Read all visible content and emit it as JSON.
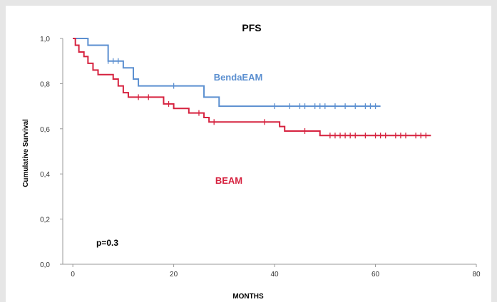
{
  "chart_data": {
    "type": "line",
    "title": "PFS",
    "xlabel": "MONTHS",
    "ylabel": "Cumulative Survival",
    "xlim": [
      -2,
      80
    ],
    "ylim": [
      0,
      1
    ],
    "x_ticks": [
      0,
      20,
      40,
      60,
      80
    ],
    "x_tick_labels": [
      "0",
      "20",
      "40",
      "60",
      "80"
    ],
    "y_ticks": [
      0,
      0.2,
      0.4,
      0.6,
      0.8,
      1.0
    ],
    "y_tick_labels": [
      "0,0",
      "0,2",
      "0,4",
      "0,6",
      "0,8",
      "1,0"
    ],
    "grid": false,
    "annotation": "p=0.3",
    "series": [
      {
        "name": "BendaEAM",
        "color": "#5b8fd0",
        "steps": [
          [
            0,
            1.0
          ],
          [
            3,
            0.97
          ],
          [
            7,
            0.9
          ],
          [
            10,
            0.87
          ],
          [
            12,
            0.82
          ],
          [
            13,
            0.79
          ],
          [
            26,
            0.74
          ],
          [
            29,
            0.7
          ],
          [
            61,
            0.7
          ]
        ],
        "censored": [
          7,
          8,
          9,
          20,
          40,
          43,
          45,
          46,
          48,
          49,
          50,
          52,
          54,
          56,
          58,
          59,
          60
        ]
      },
      {
        "name": "BEAM",
        "color": "#d6223f",
        "steps": [
          [
            0,
            1.0
          ],
          [
            0.5,
            0.97
          ],
          [
            1.2,
            0.94
          ],
          [
            2.2,
            0.92
          ],
          [
            3,
            0.89
          ],
          [
            4,
            0.86
          ],
          [
            5,
            0.84
          ],
          [
            8,
            0.82
          ],
          [
            9,
            0.79
          ],
          [
            10,
            0.76
          ],
          [
            11,
            0.74
          ],
          [
            18,
            0.71
          ],
          [
            20,
            0.69
          ],
          [
            23,
            0.67
          ],
          [
            26,
            0.65
          ],
          [
            27,
            0.63
          ],
          [
            41,
            0.61
          ],
          [
            42,
            0.59
          ],
          [
            49,
            0.57
          ],
          [
            71,
            0.57
          ]
        ],
        "censored": [
          13,
          15,
          19,
          25,
          28,
          38,
          46,
          51,
          52,
          53,
          54,
          55,
          56,
          58,
          60,
          61,
          62,
          64,
          65,
          66,
          68,
          69,
          70
        ]
      }
    ]
  }
}
